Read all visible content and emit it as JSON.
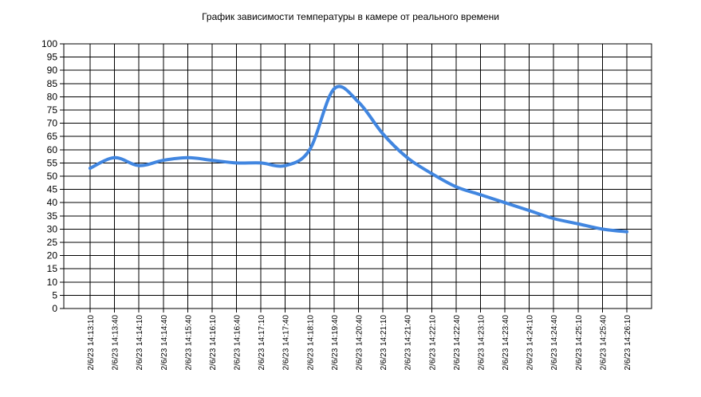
{
  "chart_data": {
    "type": "line",
    "title": "График зависимости температуры в камере от реального времени",
    "xlabel": "",
    "ylabel": "",
    "ylim": [
      0,
      100
    ],
    "y_ticks": [
      0,
      5,
      10,
      15,
      20,
      25,
      30,
      35,
      40,
      45,
      50,
      55,
      60,
      65,
      70,
      75,
      80,
      85,
      90,
      95,
      100
    ],
    "grid": true,
    "x_tick_labels": [
      "2/6/23 14:13:10",
      "2/6/23 14:13:40",
      "2/6/23 14:14:10",
      "2/6/23 14:14:40",
      "2/6/23 14:15:40",
      "2/6/23 14:16:10",
      "2/6/23 14:16:40",
      "2/6/23 14:17:10",
      "2/6/23 14:17:40",
      "2/6/23 14:18:10",
      "2/6/23 14:19:40",
      "2/6/23 14:20:40",
      "2/6/23 14:21:10",
      "2/6/23 14:21:40",
      "2/6/23 14:22:10",
      "2/6/23 14:22:40",
      "2/6/23 14:23:10",
      "2/6/23 14:23:40",
      "2/6/23 14:24:10",
      "2/6/23 14:24:40",
      "2/6/23 14:25:10",
      "2/6/23 14:25:40",
      "2/6/23 14:26:10"
    ],
    "series": [
      {
        "color": "#4186E0",
        "values": [
          53,
          57,
          54,
          56,
          57,
          56,
          55,
          55,
          54,
          60,
          83,
          78,
          66,
          57,
          51,
          46,
          43,
          40,
          37,
          34,
          32,
          30,
          29
        ]
      }
    ]
  }
}
